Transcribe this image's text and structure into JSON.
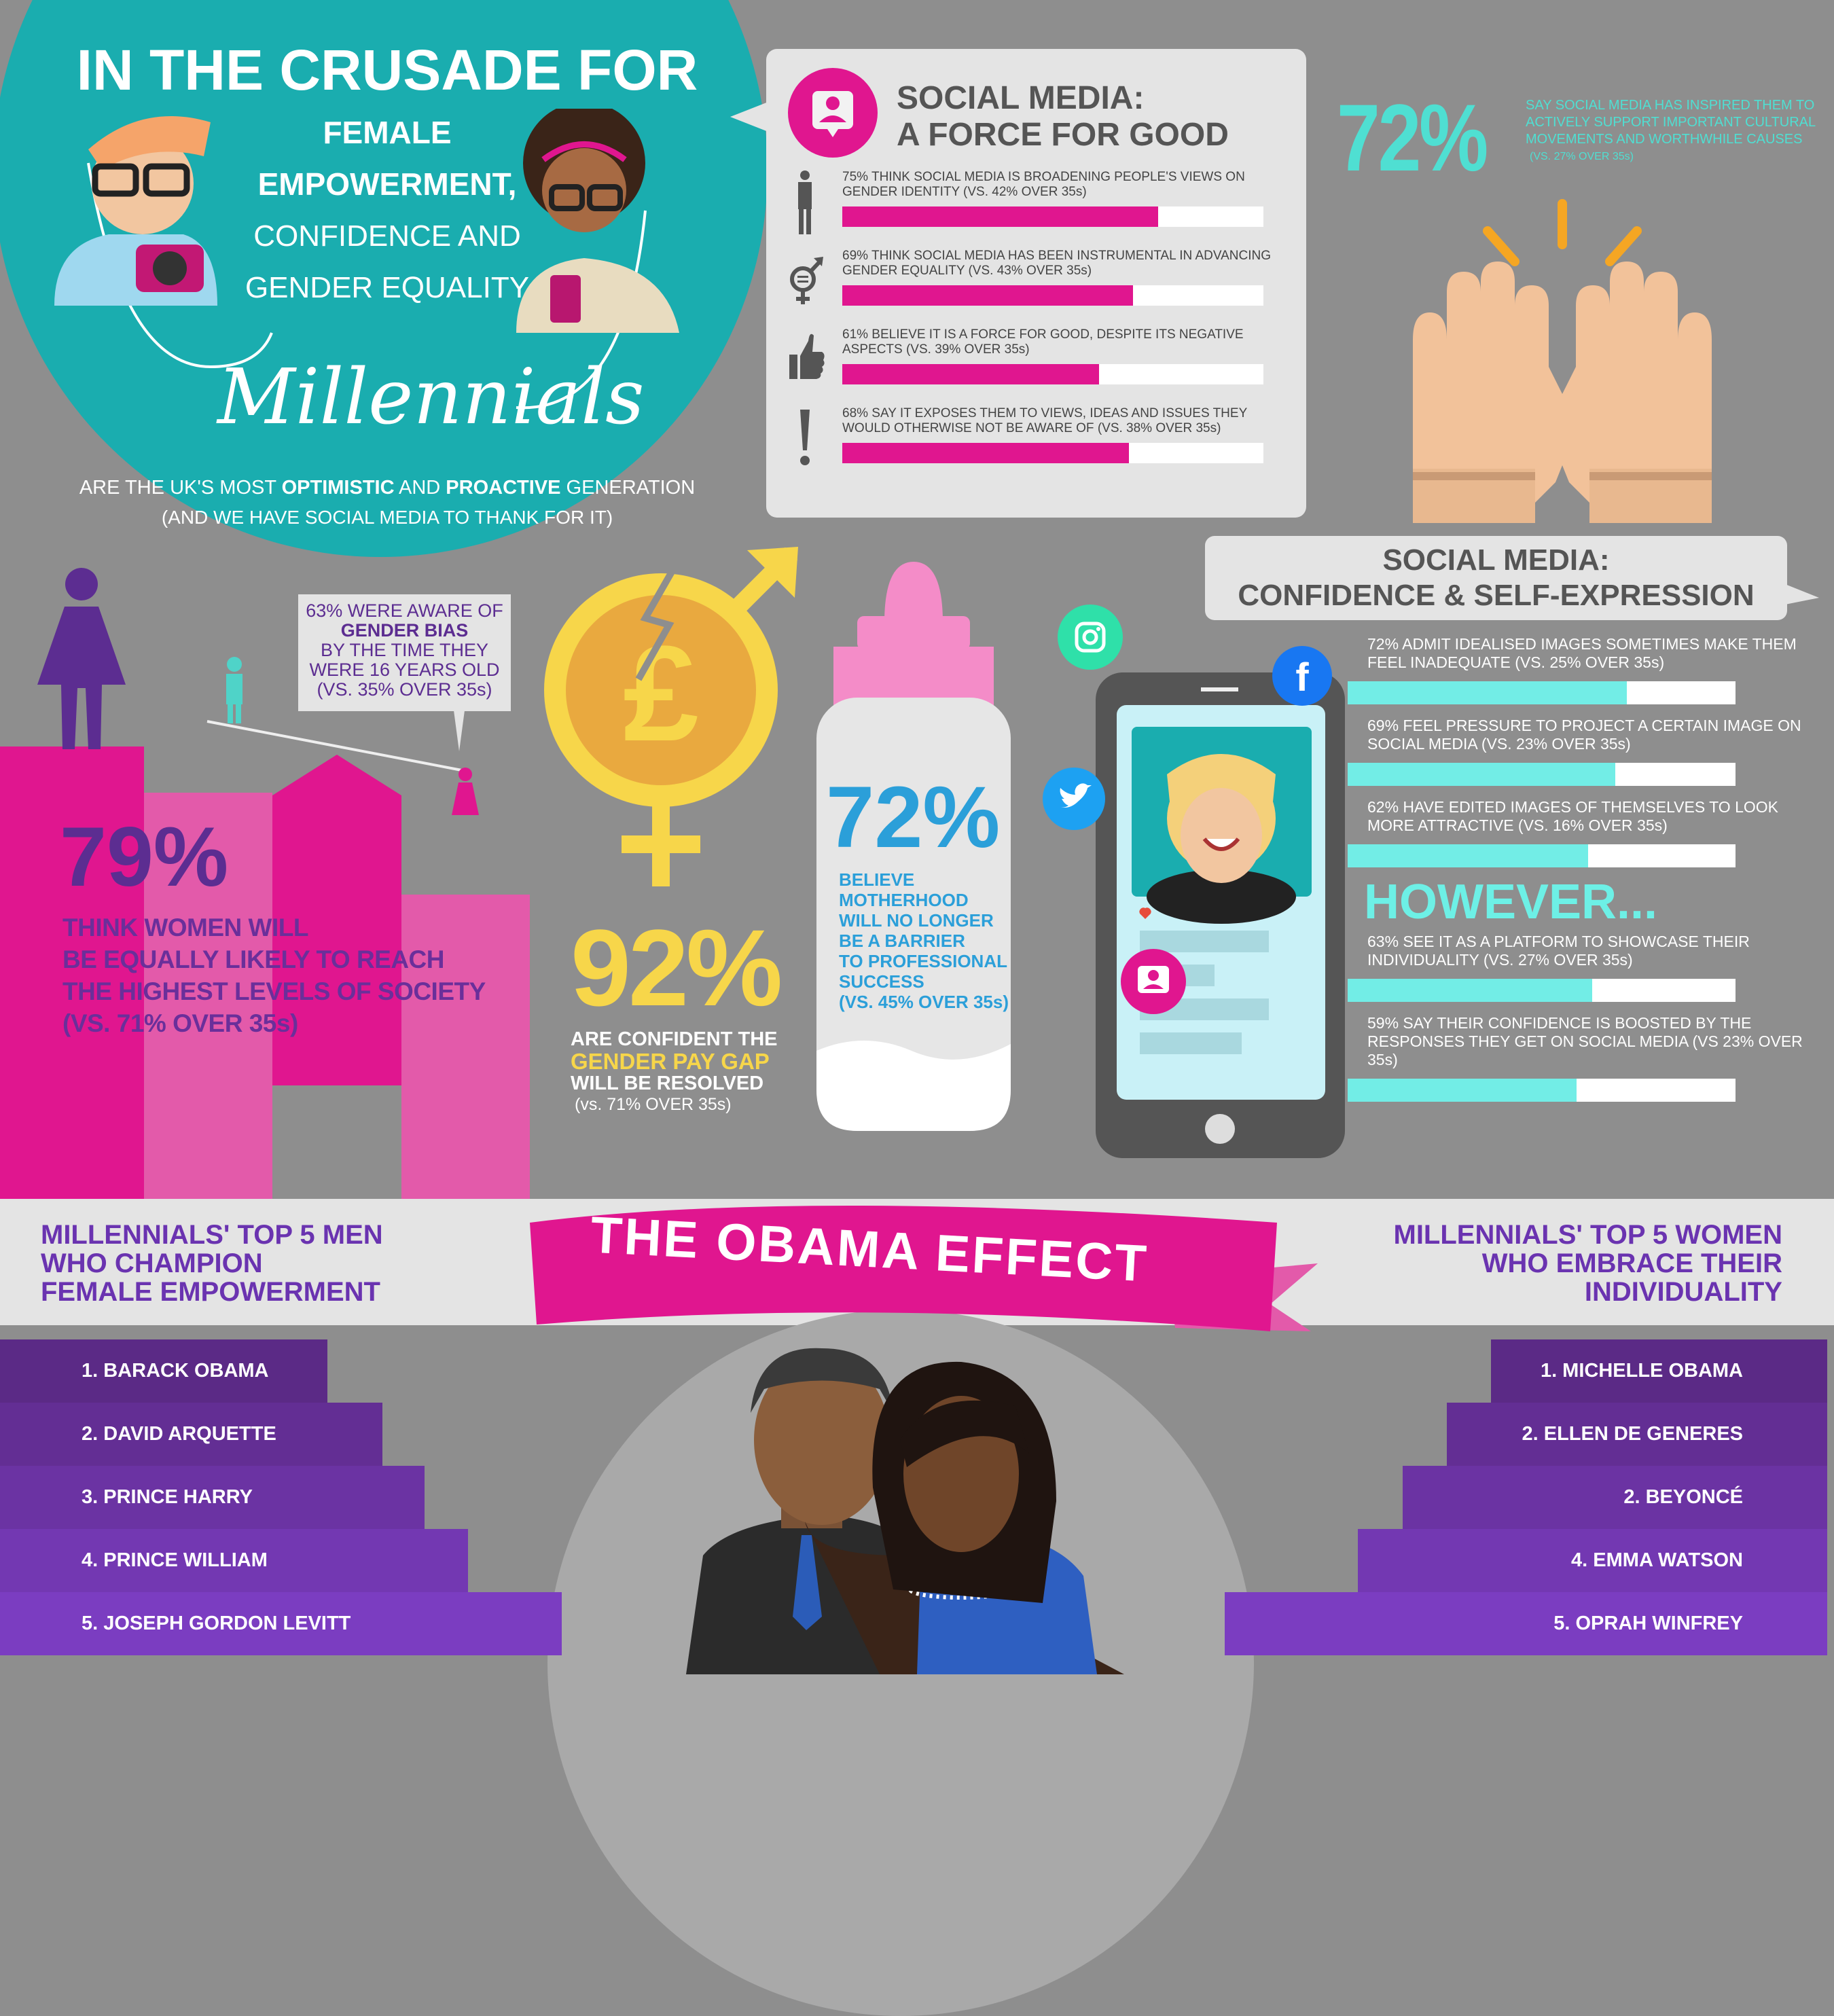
{
  "colors": {
    "background": "#8e8e8e",
    "teal": "#1aadaf",
    "pink": "#e0168f",
    "light_pink": "#e35aaa",
    "purple": "#5c2d91",
    "cyan_bar": "#72ede6",
    "yellow": "#f7d64a",
    "blue": "#2b9fd9"
  },
  "hero": {
    "line1": "IN THE CRUSADE FOR",
    "line2": "FEMALE",
    "line3": "EMPOWERMENT,",
    "line4": "CONFIDENCE AND",
    "line5": "GENDER EQUALITY",
    "script": "Millennials",
    "sub_pre": "ARE THE UK'S MOST ",
    "sub_b1": "OPTIMISTIC",
    "sub_mid": " AND ",
    "sub_b2": "PROACTIVE",
    "sub_post": " GENERATION",
    "sub2": "(AND WE HAVE SOCIAL MEDIA TO THANK FOR IT)"
  },
  "force_for_good": {
    "title1": "SOCIAL MEDIA:",
    "title2": "A FORCE FOR GOOD",
    "items": [
      {
        "icon": "gender-identity-icon",
        "text": "75% THINK SOCIAL MEDIA IS BROADENING PEOPLE'S VIEWS ON GENDER IDENTITY (VS. 42% OVER 35s)",
        "value": 75
      },
      {
        "icon": "gender-equality-icon",
        "text": "69% THINK SOCIAL MEDIA HAS BEEN INSTRUMENTAL IN ADVANCING GENDER EQUALITY (VS. 43% OVER 35s)",
        "value": 69
      },
      {
        "icon": "thumbs-up-icon",
        "text": "61% BELIEVE IT IS A FORCE FOR GOOD, DESPITE ITS NEGATIVE ASPECTS (VS. 39% OVER 35s)",
        "value": 61
      },
      {
        "icon": "exclamation-icon",
        "text": "68% SAY IT EXPOSES THEM TO VIEWS, IDEAS AND ISSUES THEY WOULD OTHERWISE NOT BE AWARE OF (VS. 38% OVER 35s)",
        "value": 68
      }
    ]
  },
  "causes": {
    "pct": "72%",
    "text": "SAY SOCIAL MEDIA HAS INSPIRED THEM TO ACTIVELY SUPPORT IMPORTANT CULTURAL MOVEMENTS AND WORTHWHILE CAUSES",
    "vs": "(VS. 27% OVER 35s)"
  },
  "gender_bias": {
    "l1": "63% WERE AWARE OF",
    "l2": "GENDER BIAS",
    "l3": "BY THE TIME THEY",
    "l4": "WERE 16 YEARS OLD",
    "l5": "(VS. 35% OVER 35s)"
  },
  "equal_levels": {
    "pct": "79%",
    "l1": "THINK WOMEN WILL",
    "l2": "BE EQUALLY LIKELY TO REACH",
    "l3": "THE HIGHEST LEVELS OF SOCIETY",
    "l4": "(VS. 71% OVER 35s)"
  },
  "pay_gap": {
    "pct": "92%",
    "l1": "ARE CONFIDENT THE",
    "l2": "GENDER PAY GAP",
    "l3": "WILL BE RESOLVED",
    "l4": "(vs. 71% OVER 35s)"
  },
  "motherhood": {
    "pct": "72%",
    "lines": [
      "BELIEVE",
      "MOTHERHOOD",
      "WILL NO LONGER",
      "BE A BARRIER",
      "TO PROFESSIONAL",
      "SUCCESS",
      "(VS. 45% OVER 35s)"
    ]
  },
  "confidence": {
    "title1": "SOCIAL MEDIA:",
    "title2": "CONFIDENCE & SELF-EXPRESSION",
    "however": "HOWEVER...",
    "items": [
      {
        "text": "72% ADMIT IDEALISED IMAGES SOMETIMES MAKE THEM FEEL INADEQUATE (VS. 25% OVER 35s)",
        "value": 72
      },
      {
        "text": "69% FEEL PRESSURE TO PROJECT A CERTAIN IMAGE ON SOCIAL MEDIA (VS. 23% OVER 35s)",
        "value": 69
      },
      {
        "text": "62% HAVE EDITED IMAGES OF THEMSELVES TO LOOK MORE ATTRACTIVE (VS. 16% OVER 35s)",
        "value": 62
      },
      {
        "text": "63% SEE IT AS A PLATFORM TO SHOWCASE THEIR INDIVIDUALITY (VS. 27% OVER 35s)",
        "value": 63
      },
      {
        "text": "59% SAY THEIR CONFIDENCE IS BOOSTED BY THE RESPONSES THEY GET ON SOCIAL MEDIA (VS 23% OVER 35s)",
        "value": 59
      }
    ]
  },
  "obama": {
    "ribbon": "THE OBAMA EFFECT",
    "men_title": [
      "MILLENNIALS' TOP 5 MEN",
      "WHO CHAMPION",
      "FEMALE EMPOWERMENT"
    ],
    "women_title": [
      "MILLENNIALS' TOP 5 WOMEN",
      "WHO EMBRACE THEIR",
      "INDIVIDUALITY"
    ],
    "men": [
      "1. BARACK OBAMA",
      "2. DAVID ARQUETTE",
      "3. PRINCE HARRY",
      "4. PRINCE WILLIAM",
      "5. JOSEPH GORDON LEVITT"
    ],
    "women": [
      "1. MICHELLE OBAMA",
      "2. ELLEN DE GENERES",
      "2. BEYONCÉ",
      "4. EMMA WATSON",
      "5. OPRAH WINFREY"
    ]
  }
}
